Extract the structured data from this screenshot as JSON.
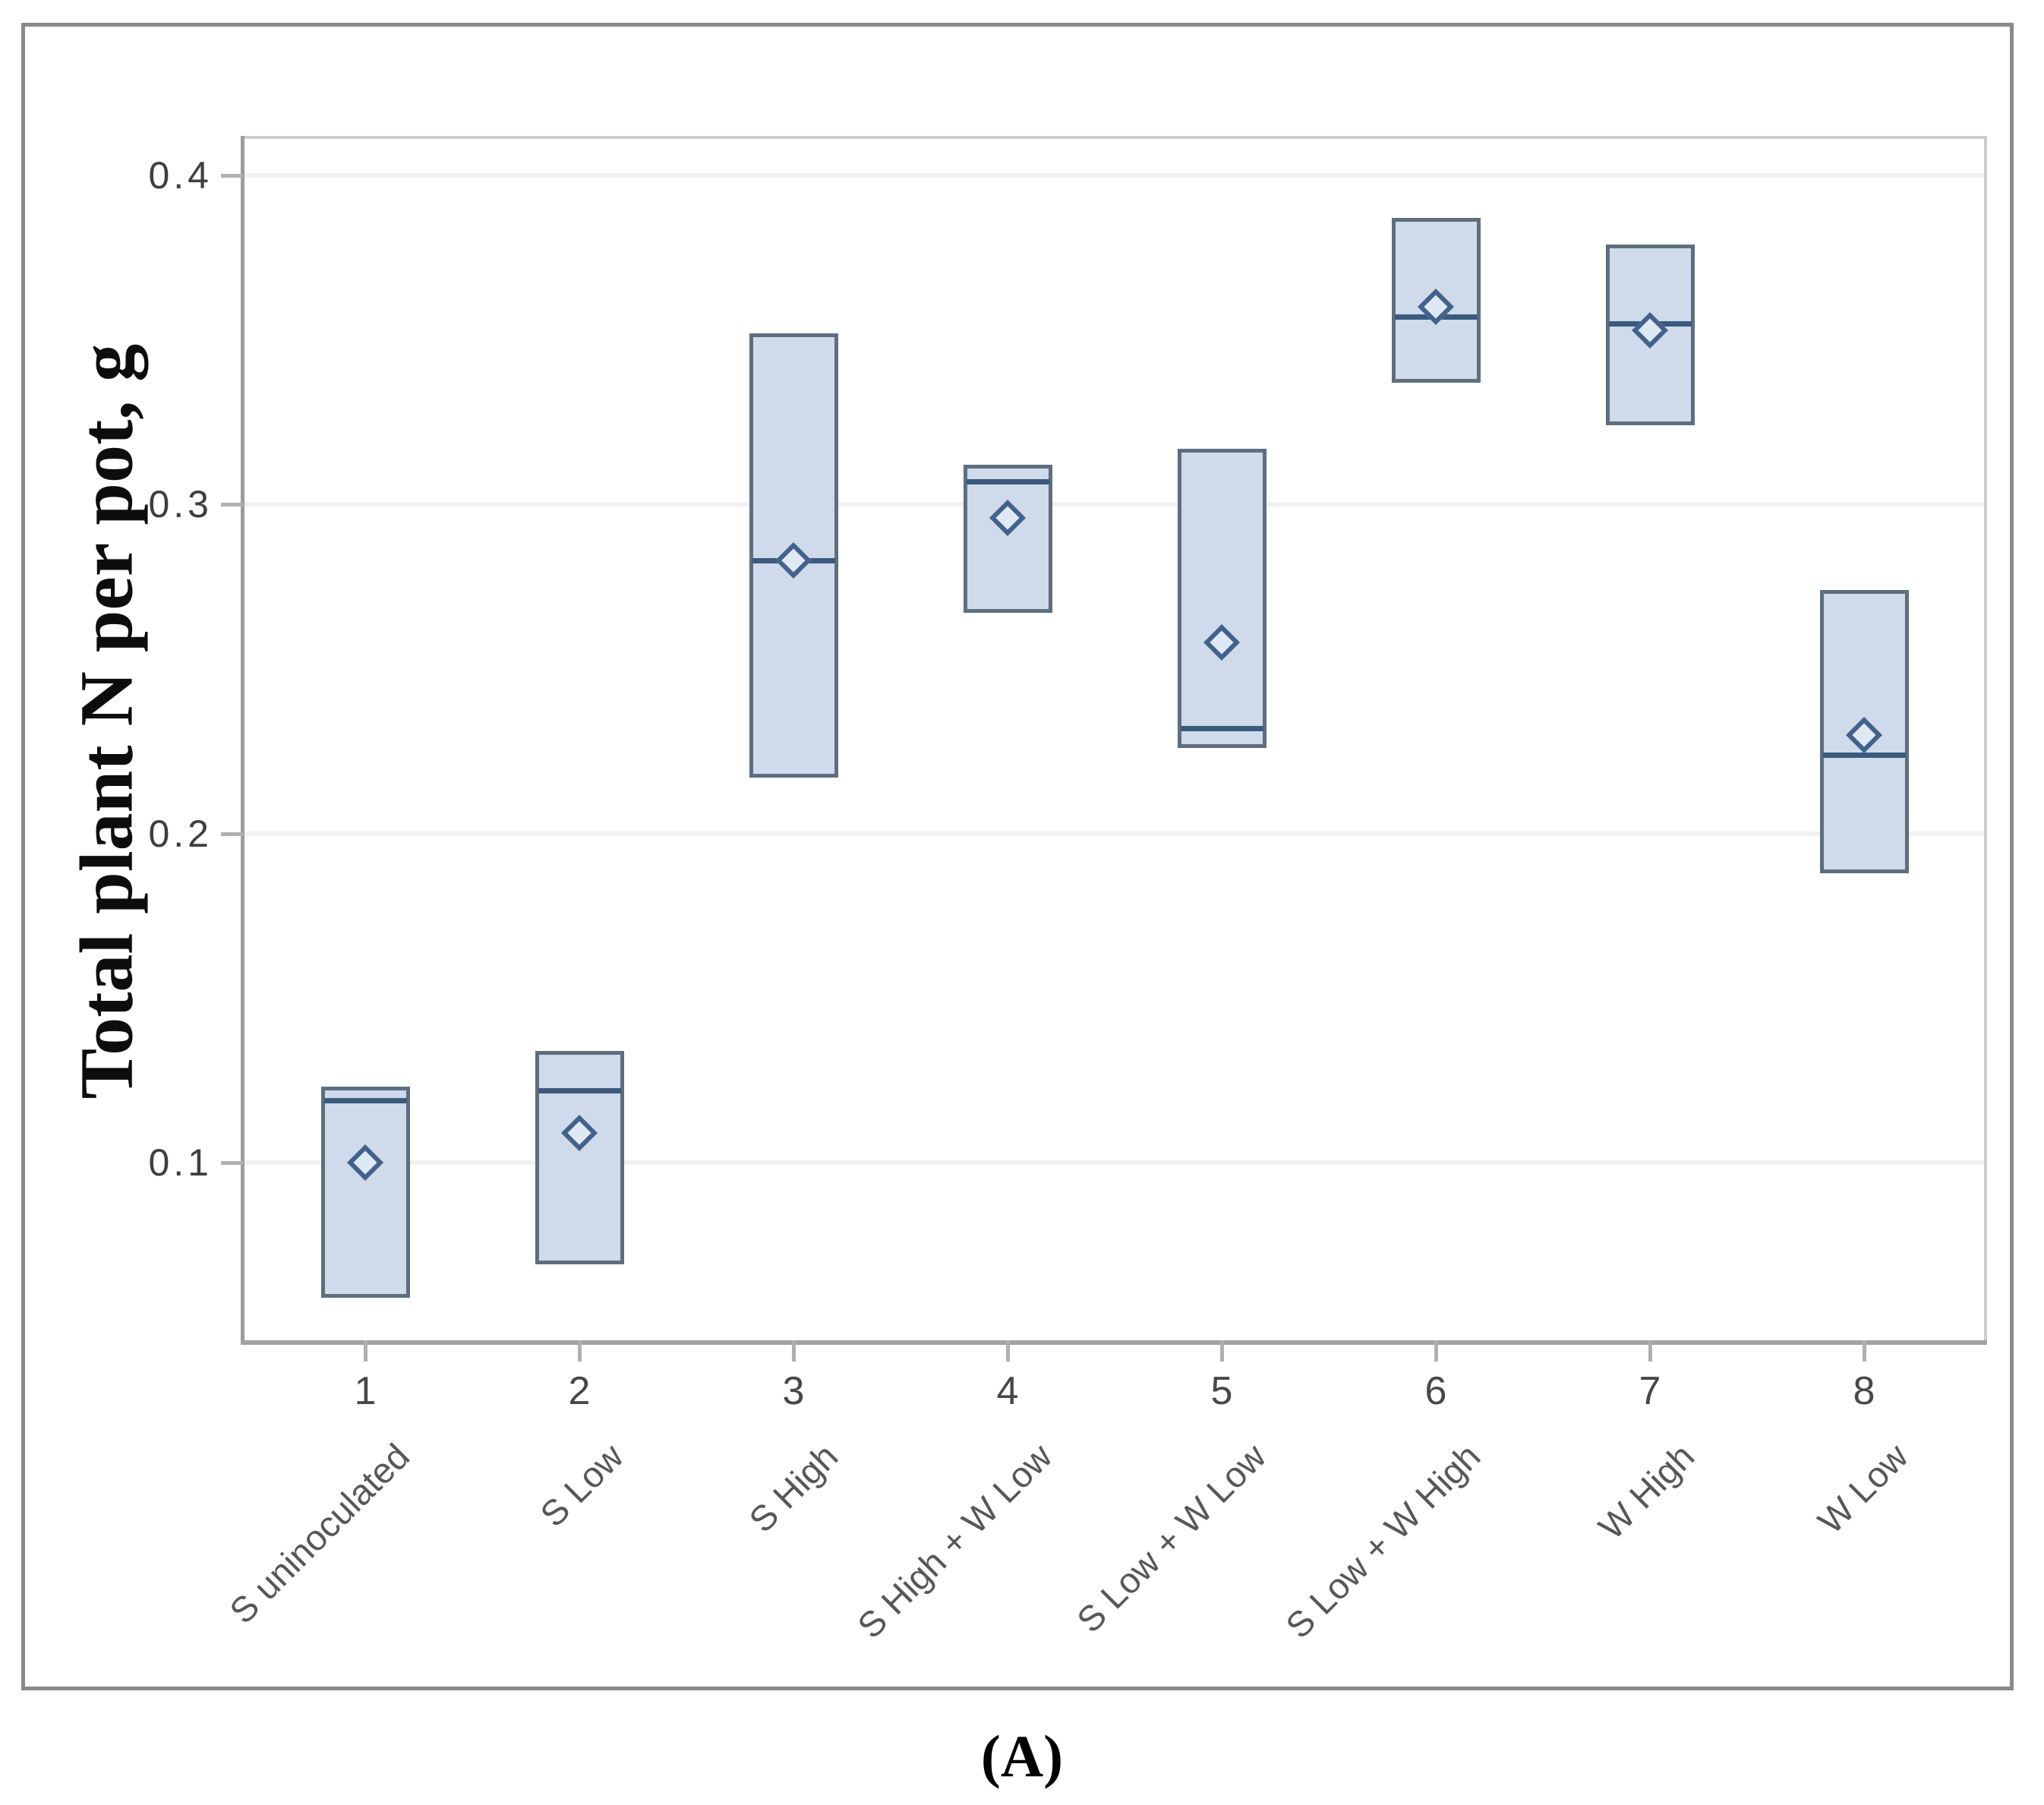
{
  "figure": {
    "caption": "(A)"
  },
  "chart_data": {
    "type": "box",
    "title": "",
    "xlabel": "",
    "ylabel": "Total plant N per pot, g",
    "ylim": [
      0.046,
      0.412
    ],
    "yticks": [
      0.4,
      0.3,
      0.2,
      0.1
    ],
    "ytick_labels": [
      "0.4",
      "0.3",
      "0.2",
      "0.1"
    ],
    "grid": true,
    "legend": "none",
    "mean_marker": "diamond",
    "x_tick_labels": [
      "1",
      "2",
      "3",
      "4",
      "5",
      "6",
      "7",
      "8"
    ],
    "categories": [
      "S uninoculated",
      "S Low",
      "S High",
      "S High + W Low",
      "S Low + W Low",
      "S Low + W High",
      "W High",
      "W Low"
    ],
    "series": [
      {
        "x": 1,
        "category": "S uninoculated",
        "box_top": 0.123,
        "median": 0.119,
        "mean": 0.1,
        "box_bottom": 0.059
      },
      {
        "x": 2,
        "category": "S Low",
        "box_top": 0.134,
        "median": 0.122,
        "mean": 0.109,
        "box_bottom": 0.069
      },
      {
        "x": 3,
        "category": "S High",
        "box_top": 0.352,
        "median": 0.283,
        "mean": 0.283,
        "box_bottom": 0.217
      },
      {
        "x": 4,
        "category": "S High + W Low",
        "box_top": 0.312,
        "median": 0.307,
        "mean": 0.296,
        "box_bottom": 0.267
      },
      {
        "x": 5,
        "category": "S Low + W Low",
        "box_top": 0.317,
        "median": 0.232,
        "mean": 0.258,
        "box_bottom": 0.226
      },
      {
        "x": 6,
        "category": "S Low + W High",
        "box_top": 0.387,
        "median": 0.357,
        "mean": 0.36,
        "box_bottom": 0.337
      },
      {
        "x": 7,
        "category": "W High",
        "box_top": 0.379,
        "median": 0.355,
        "mean": 0.353,
        "box_bottom": 0.324
      },
      {
        "x": 8,
        "category": "W Low",
        "box_top": 0.274,
        "median": 0.224,
        "mean": 0.23,
        "box_bottom": 0.188
      }
    ],
    "colors": {
      "box_fill": "#cfdbea",
      "box_border": "#5e6e7e",
      "median_line": "#3a5a7e",
      "mean_marker_border": "#41628c",
      "mean_marker_fill": "#dfe9f4",
      "gridline": "#f1f1f1",
      "axis_line": "#9c9c9c",
      "x_axis_line": "#a3a3a3",
      "tick": "#b0b0b0",
      "frame": "#cdcdcd",
      "outer_border": "#898989",
      "tick_label": "#3e3e3e",
      "category_label": "#575757"
    }
  }
}
